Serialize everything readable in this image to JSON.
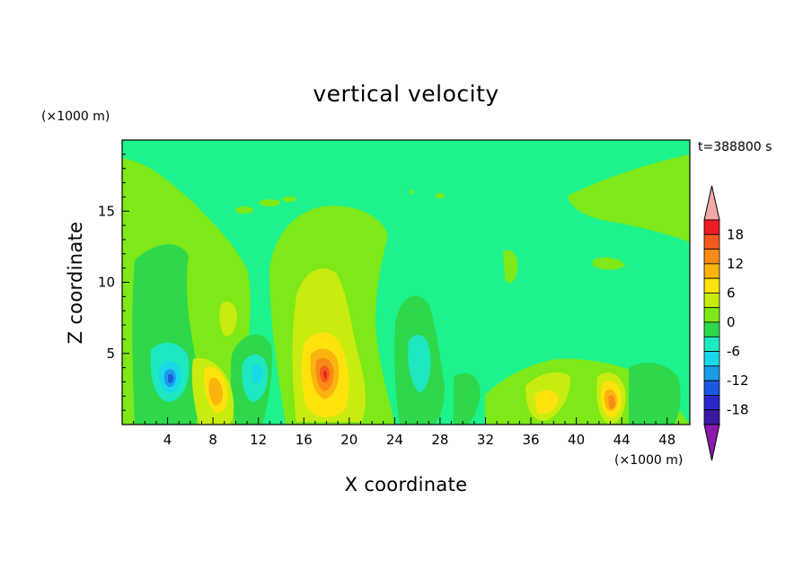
{
  "chart_data": {
    "type": "heatmap",
    "subtype": "filled-contour",
    "title": "vertical velocity",
    "xlabel": "X coordinate",
    "ylabel": "Z coordinate",
    "x_unit": "(×1000 m)",
    "y_unit": "(×1000 m)",
    "time_label": "t=388800 s",
    "xlim": [
      0,
      50
    ],
    "ylim": [
      0,
      20
    ],
    "x_ticks": [
      "4",
      "8",
      "12",
      "16",
      "20",
      "24",
      "28",
      "32",
      "36",
      "40",
      "44",
      "48"
    ],
    "y_ticks": [
      "5",
      "10",
      "15"
    ],
    "grid": false,
    "colorbar": {
      "position": "right",
      "extend": "both",
      "tick_labels": [
        "18",
        "12",
        "6",
        "0",
        "-6",
        "-12",
        "-18"
      ],
      "levels": [
        21,
        18,
        15,
        12,
        9,
        6,
        3,
        0,
        -3,
        -6,
        -9,
        -12,
        -15,
        -18,
        -21
      ],
      "colors": [
        "#ee1c24",
        "#f4591e",
        "#f88a16",
        "#fbb310",
        "#fde20c",
        "#c8ec10",
        "#7ee818",
        "#2ed84a",
        "#1ee8c0",
        "#1ad8e8",
        "#1a9ce8",
        "#1a5ae0",
        "#2a28c8",
        "#3a1aa0"
      ],
      "over_color": "#f4a8a8",
      "under_color": "#8a1aaa"
    },
    "features": [
      {
        "kind": "updraft",
        "x": 8.5,
        "z": 2.5,
        "w": 9
      },
      {
        "kind": "updraft",
        "x": 17.8,
        "z": 3.2,
        "w": 14
      },
      {
        "kind": "updraft",
        "x": 36.5,
        "z": 1.5,
        "w": 6
      },
      {
        "kind": "updraft",
        "x": 43.0,
        "z": 1.8,
        "w": 11
      },
      {
        "kind": "updraft",
        "x": 9.5,
        "z": 7.8,
        "w": 4
      },
      {
        "kind": "downdraft",
        "x": 4.3,
        "z": 3.2,
        "w": -13
      },
      {
        "kind": "downdraft",
        "x": 12.8,
        "z": 3.8,
        "w": -6
      },
      {
        "kind": "downdraft",
        "x": 26.0,
        "z": 3.5,
        "w": -6
      }
    ],
    "background_color": "#1ef28c"
  }
}
